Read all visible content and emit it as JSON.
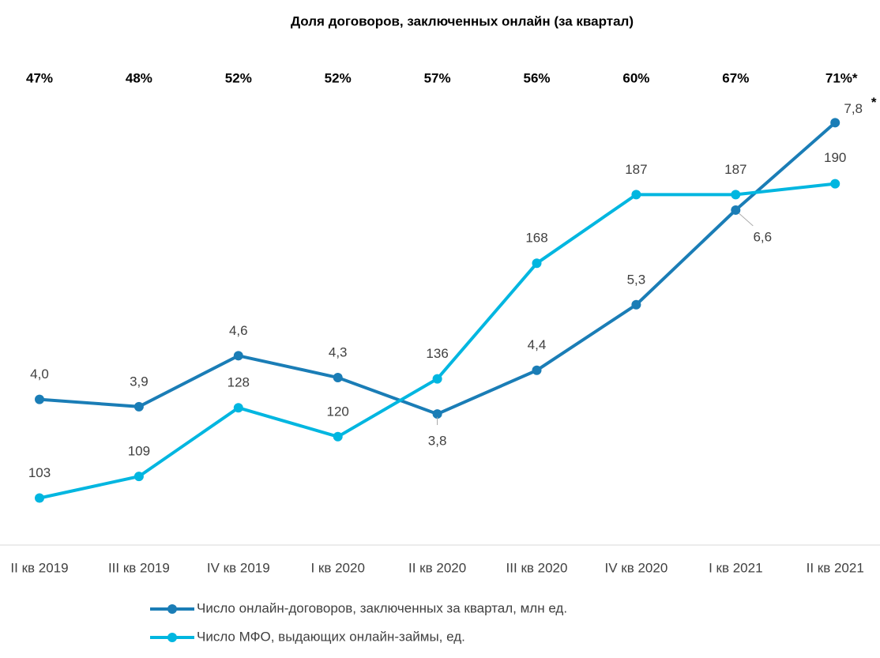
{
  "chart_data": {
    "type": "line",
    "title": "Доля договоров, заключенных онлайн (за квартал)",
    "categories": [
      "II кв 2019",
      "III кв 2019",
      "IV кв 2019",
      "I кв 2020",
      "II кв 2020",
      "III кв 2020",
      "IV кв 2020",
      "I кв 2021",
      "II кв 2021"
    ],
    "top_labels": [
      "47%",
      "48%",
      "52%",
      "52%",
      "57%",
      "56%",
      "60%",
      "67%",
      "71%*"
    ],
    "series": [
      {
        "name": "Число онлайн-договоров, заключенных за квартал, млн ед.",
        "color": "#1a7db6",
        "values": [
          4.0,
          3.9,
          4.6,
          4.3,
          3.8,
          4.4,
          5.3,
          6.6,
          7.8
        ],
        "value_labels": [
          "4,0",
          "3,9",
          "4,6",
          "4,3",
          "3,8",
          "4,4",
          "5,3",
          "6,6",
          "7,8"
        ]
      },
      {
        "name": "Число МФО, выдающих онлайн-займы, ед.",
        "color": "#00b6e0",
        "axis": "y2",
        "values": [
          103,
          109,
          128,
          120,
          136,
          168,
          187,
          187,
          190
        ]
      }
    ],
    "annotation": "*",
    "ylim": [
      2,
      8.4
    ],
    "y2lim": [
      90,
      219
    ],
    "legend": "bottom"
  }
}
